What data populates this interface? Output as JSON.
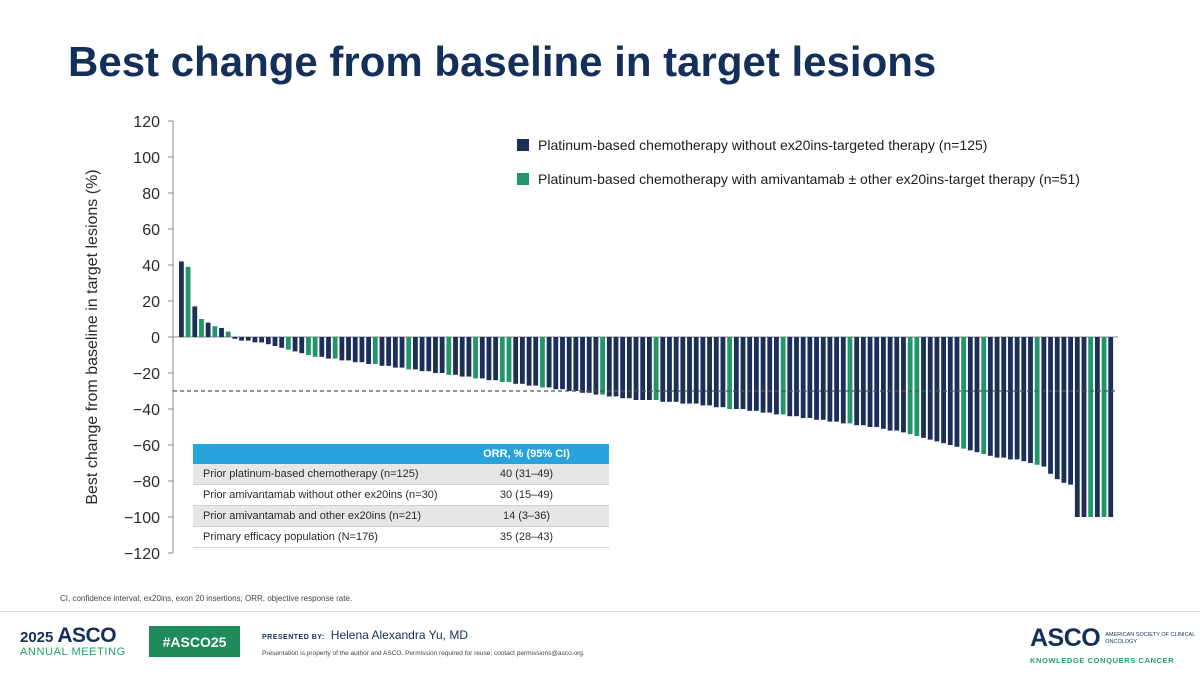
{
  "slide": {
    "title": "Best change from baseline in target lesions"
  },
  "chart_data": {
    "type": "bar",
    "title": "",
    "xlabel": "",
    "ylabel": "Best change from baseline in target lesions (%)",
    "ylim": [
      -120,
      120
    ],
    "yticks": [
      120,
      100,
      80,
      60,
      40,
      20,
      0,
      -20,
      -40,
      -60,
      -80,
      -100,
      -120
    ],
    "reference_line": -30,
    "grid": false,
    "legend_position": "top-right",
    "colors": {
      "navy": "#1b2f58",
      "green": "#23956a",
      "axis": "#8a8a8a",
      "dashed": "#555555"
    },
    "series": [
      {
        "name": "Platinum-based chemotherapy without ex20ins-targeted therapy (n=125)",
        "color": "#1b2f58"
      },
      {
        "name": "Platinum-based chemotherapy with amivantamab ± other ex20ins-target therapy (n=51)",
        "color": "#23956a"
      }
    ],
    "bars": [
      {
        "v": 42,
        "s": 0
      },
      {
        "v": 39,
        "s": 1
      },
      {
        "v": 17,
        "s": 0
      },
      {
        "v": 10,
        "s": 1
      },
      {
        "v": 8,
        "s": 0
      },
      {
        "v": 6,
        "s": 1
      },
      {
        "v": 5,
        "s": 0
      },
      {
        "v": 3,
        "s": 1
      },
      {
        "v": -1,
        "s": 0
      },
      {
        "v": -2,
        "s": 0
      },
      {
        "v": -2,
        "s": 0
      },
      {
        "v": -3,
        "s": 0
      },
      {
        "v": -3,
        "s": 0
      },
      {
        "v": -4,
        "s": 0
      },
      {
        "v": -5,
        "s": 0
      },
      {
        "v": -6,
        "s": 0
      },
      {
        "v": -7,
        "s": 1
      },
      {
        "v": -8,
        "s": 0
      },
      {
        "v": -9,
        "s": 0
      },
      {
        "v": -10,
        "s": 1
      },
      {
        "v": -11,
        "s": 1
      },
      {
        "v": -11,
        "s": 0
      },
      {
        "v": -12,
        "s": 0
      },
      {
        "v": -12,
        "s": 1
      },
      {
        "v": -13,
        "s": 0
      },
      {
        "v": -13,
        "s": 0
      },
      {
        "v": -14,
        "s": 0
      },
      {
        "v": -14,
        "s": 0
      },
      {
        "v": -15,
        "s": 0
      },
      {
        "v": -15,
        "s": 1
      },
      {
        "v": -16,
        "s": 0
      },
      {
        "v": -16,
        "s": 0
      },
      {
        "v": -17,
        "s": 0
      },
      {
        "v": -17,
        "s": 0
      },
      {
        "v": -18,
        "s": 1
      },
      {
        "v": -18,
        "s": 0
      },
      {
        "v": -19,
        "s": 0
      },
      {
        "v": -19,
        "s": 0
      },
      {
        "v": -20,
        "s": 0
      },
      {
        "v": -20,
        "s": 0
      },
      {
        "v": -21,
        "s": 1
      },
      {
        "v": -21,
        "s": 0
      },
      {
        "v": -22,
        "s": 0
      },
      {
        "v": -22,
        "s": 0
      },
      {
        "v": -23,
        "s": 1
      },
      {
        "v": -23,
        "s": 0
      },
      {
        "v": -24,
        "s": 0
      },
      {
        "v": -24,
        "s": 0
      },
      {
        "v": -25,
        "s": 1
      },
      {
        "v": -25,
        "s": 1
      },
      {
        "v": -26,
        "s": 0
      },
      {
        "v": -26,
        "s": 0
      },
      {
        "v": -27,
        "s": 0
      },
      {
        "v": -27,
        "s": 0
      },
      {
        "v": -28,
        "s": 1
      },
      {
        "v": -28,
        "s": 0
      },
      {
        "v": -29,
        "s": 0
      },
      {
        "v": -29,
        "s": 0
      },
      {
        "v": -30,
        "s": 0
      },
      {
        "v": -30,
        "s": 0
      },
      {
        "v": -31,
        "s": 0
      },
      {
        "v": -31,
        "s": 0
      },
      {
        "v": -32,
        "s": 0
      },
      {
        "v": -32,
        "s": 1
      },
      {
        "v": -33,
        "s": 0
      },
      {
        "v": -33,
        "s": 0
      },
      {
        "v": -34,
        "s": 0
      },
      {
        "v": -34,
        "s": 0
      },
      {
        "v": -35,
        "s": 0
      },
      {
        "v": -35,
        "s": 0
      },
      {
        "v": -35,
        "s": 0
      },
      {
        "v": -35,
        "s": 1
      },
      {
        "v": -36,
        "s": 0
      },
      {
        "v": -36,
        "s": 0
      },
      {
        "v": -36,
        "s": 0
      },
      {
        "v": -37,
        "s": 0
      },
      {
        "v": -37,
        "s": 0
      },
      {
        "v": -37,
        "s": 0
      },
      {
        "v": -38,
        "s": 0
      },
      {
        "v": -38,
        "s": 0
      },
      {
        "v": -39,
        "s": 0
      },
      {
        "v": -39,
        "s": 0
      },
      {
        "v": -40,
        "s": 1
      },
      {
        "v": -40,
        "s": 0
      },
      {
        "v": -40,
        "s": 0
      },
      {
        "v": -41,
        "s": 0
      },
      {
        "v": -41,
        "s": 0
      },
      {
        "v": -42,
        "s": 0
      },
      {
        "v": -42,
        "s": 0
      },
      {
        "v": -43,
        "s": 0
      },
      {
        "v": -43,
        "s": 1
      },
      {
        "v": -44,
        "s": 0
      },
      {
        "v": -44,
        "s": 0
      },
      {
        "v": -45,
        "s": 0
      },
      {
        "v": -45,
        "s": 0
      },
      {
        "v": -46,
        "s": 0
      },
      {
        "v": -46,
        "s": 0
      },
      {
        "v": -47,
        "s": 0
      },
      {
        "v": -47,
        "s": 0
      },
      {
        "v": -48,
        "s": 0
      },
      {
        "v": -48,
        "s": 1
      },
      {
        "v": -49,
        "s": 0
      },
      {
        "v": -49,
        "s": 0
      },
      {
        "v": -50,
        "s": 0
      },
      {
        "v": -50,
        "s": 0
      },
      {
        "v": -51,
        "s": 0
      },
      {
        "v": -52,
        "s": 0
      },
      {
        "v": -52,
        "s": 0
      },
      {
        "v": -53,
        "s": 0
      },
      {
        "v": -54,
        "s": 1
      },
      {
        "v": -55,
        "s": 1
      },
      {
        "v": -56,
        "s": 0
      },
      {
        "v": -57,
        "s": 0
      },
      {
        "v": -58,
        "s": 0
      },
      {
        "v": -59,
        "s": 0
      },
      {
        "v": -60,
        "s": 0
      },
      {
        "v": -61,
        "s": 0
      },
      {
        "v": -62,
        "s": 1
      },
      {
        "v": -63,
        "s": 0
      },
      {
        "v": -64,
        "s": 0
      },
      {
        "v": -65,
        "s": 1
      },
      {
        "v": -66,
        "s": 0
      },
      {
        "v": -67,
        "s": 0
      },
      {
        "v": -67,
        "s": 0
      },
      {
        "v": -68,
        "s": 0
      },
      {
        "v": -68,
        "s": 0
      },
      {
        "v": -69,
        "s": 0
      },
      {
        "v": -70,
        "s": 0
      },
      {
        "v": -71,
        "s": 1
      },
      {
        "v": -72,
        "s": 0
      },
      {
        "v": -76,
        "s": 0
      },
      {
        "v": -79,
        "s": 0
      },
      {
        "v": -81,
        "s": 0
      },
      {
        "v": -82,
        "s": 0
      },
      {
        "v": -100,
        "s": 0
      },
      {
        "v": -100,
        "s": 0
      },
      {
        "v": -100,
        "s": 1
      },
      {
        "v": -100,
        "s": 0
      },
      {
        "v": -100,
        "s": 1
      },
      {
        "v": -100,
        "s": 0
      }
    ]
  },
  "orr_table": {
    "header": "ORR, % (95% CI)",
    "rows": [
      {
        "label": "Prior platinum-based chemotherapy (n=125)",
        "value": "40 (31–49)"
      },
      {
        "label": "Prior amivantamab without other ex20ins (n=30)",
        "value": "30 (15–49)"
      },
      {
        "label": "Prior amivantamab and other ex20ins (n=21)",
        "value": "14 (3–36)"
      },
      {
        "label": "Primary efficacy population (N=176)",
        "value": "35 (28–43)"
      }
    ]
  },
  "footnote": "CI, confidence interval; ex20ins, exon 20 insertions; ORR, objective response rate.",
  "footer": {
    "meeting_year": "2025",
    "meeting_org": "ASCO",
    "meeting_sub": "ANNUAL MEETING",
    "hashtag": "#ASCO25",
    "presented_label": "PRESENTED BY:",
    "presenter": "Helena Alexandra Yu, MD",
    "property_note": "Presentation is property of the author and ASCO. Permission required for reuse; contact permissions@asco.org.",
    "brand": "ASCO",
    "brand_society": "AMERICAN SOCIETY OF CLINICAL ONCOLOGY",
    "brand_tagline": "KNOWLEDGE CONQUERS CANCER"
  }
}
